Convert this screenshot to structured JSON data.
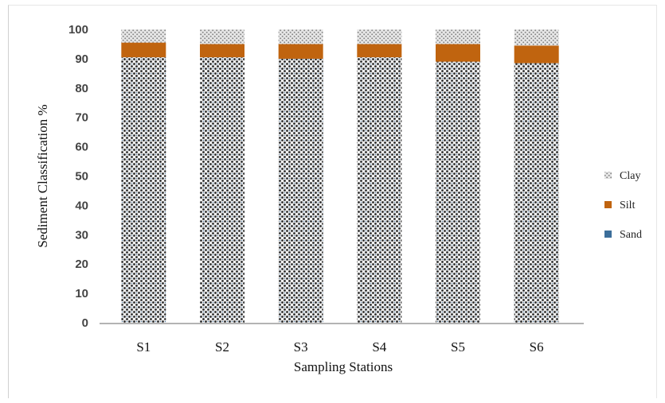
{
  "chart_data": {
    "type": "bar",
    "stacked": true,
    "categories": [
      "S1",
      "S2",
      "S3",
      "S4",
      "S5",
      "S6"
    ],
    "series": [
      {
        "name": "Sand",
        "values": [
          90.5,
          90.5,
          90.0,
          90.5,
          89.0,
          88.5
        ],
        "color": "#3a3a3a",
        "pattern": "dense-dots"
      },
      {
        "name": "Silt",
        "values": [
          5.0,
          4.5,
          5.0,
          4.5,
          6.0,
          6.0
        ],
        "color": "#c0640f",
        "pattern": "solid"
      },
      {
        "name": "Clay",
        "values": [
          4.5,
          5.0,
          5.0,
          5.0,
          5.0,
          5.5
        ],
        "color": "#9a9a9a",
        "pattern": "light-dots"
      }
    ],
    "title": "",
    "xlabel": "Sampling Stations",
    "ylabel": "Sediment Classification %",
    "ylim": [
      0,
      100
    ],
    "yticks": [
      "0",
      "10",
      "20",
      "30",
      "40",
      "50",
      "60",
      "70",
      "80",
      "90",
      "100"
    ],
    "grid": false,
    "legend": {
      "position": "right",
      "entries": [
        {
          "label": "Clay",
          "color": "#9a9a9a"
        },
        {
          "label": "Silt",
          "color": "#c0640f"
        },
        {
          "label": "Sand",
          "color": "#3c6e9a"
        }
      ]
    }
  }
}
